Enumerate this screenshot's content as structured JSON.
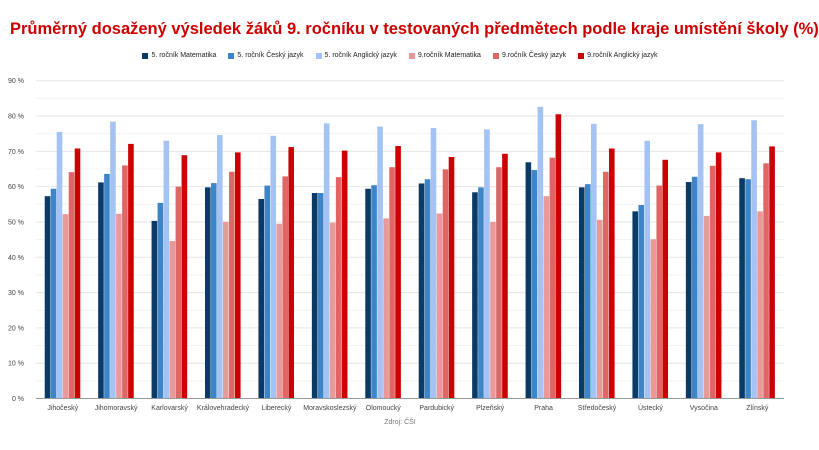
{
  "chart_data": {
    "type": "bar",
    "title": "Průměrný dosažený výsledek žáků 9. ročníku v testovaných předmětech podle kraje umístění školy (%)",
    "xlabel": "Zdroj: ČŠI",
    "ylabel": "",
    "ylim": [
      0,
      90
    ],
    "yticks": [
      "0 %",
      "10 %",
      "20 %",
      "30 %",
      "40 %",
      "50 %",
      "60 %",
      "70 %",
      "80 %",
      "90 %"
    ],
    "grid": true,
    "legend_position": "top",
    "categories": [
      "Jihočeský",
      "Jihomoravský",
      "Karlovarský",
      "Královehradecký",
      "Liberecký",
      "Moravskoslezský",
      "Olomoucký",
      "Pardubický",
      "Plzeňský",
      "Praha",
      "Středočeský",
      "Ústecký",
      "Vysočina",
      "Zlínský"
    ],
    "series": [
      {
        "name": "5. ročník Matematika",
        "color": "#0b3a66",
        "values": [
          57.3,
          61.2,
          50.3,
          59.8,
          56.5,
          58.2,
          59.4,
          60.9,
          58.4,
          66.9,
          59.8,
          53.0,
          61.3,
          62.4
        ]
      },
      {
        "name": "5. ročník Český jazyk",
        "color": "#3d85c6",
        "values": [
          59.4,
          63.6,
          55.4,
          61.0,
          60.3,
          58.2,
          60.4,
          62.1,
          59.8,
          64.7,
          60.7,
          54.8,
          62.8,
          62.1
        ]
      },
      {
        "name": "5. ročník Anglický jazyk",
        "color": "#a4c2f4",
        "values": [
          75.5,
          78.4,
          73.0,
          74.6,
          74.4,
          77.9,
          77.0,
          76.6,
          76.2,
          82.6,
          77.8,
          73.0,
          77.7,
          78.8
        ]
      },
      {
        "name": "9.ročník Matematika",
        "color": "#ea9999",
        "values": [
          52.2,
          52.3,
          44.6,
          50.0,
          49.5,
          49.8,
          51.0,
          52.4,
          50.0,
          57.3,
          50.6,
          45.1,
          51.7,
          53.0
        ]
      },
      {
        "name": "9.ročník Český jazyk",
        "color": "#e06666",
        "values": [
          64.1,
          66.0,
          60.0,
          64.2,
          62.9,
          62.7,
          65.5,
          64.9,
          65.5,
          68.2,
          64.2,
          60.3,
          65.9,
          66.6
        ]
      },
      {
        "name": "9.ročník Anglický jazyk",
        "color": "#cc0000",
        "values": [
          70.8,
          72.1,
          68.9,
          69.7,
          71.2,
          70.2,
          71.5,
          68.4,
          69.3,
          80.5,
          70.8,
          67.6,
          69.7,
          71.4
        ]
      }
    ]
  }
}
